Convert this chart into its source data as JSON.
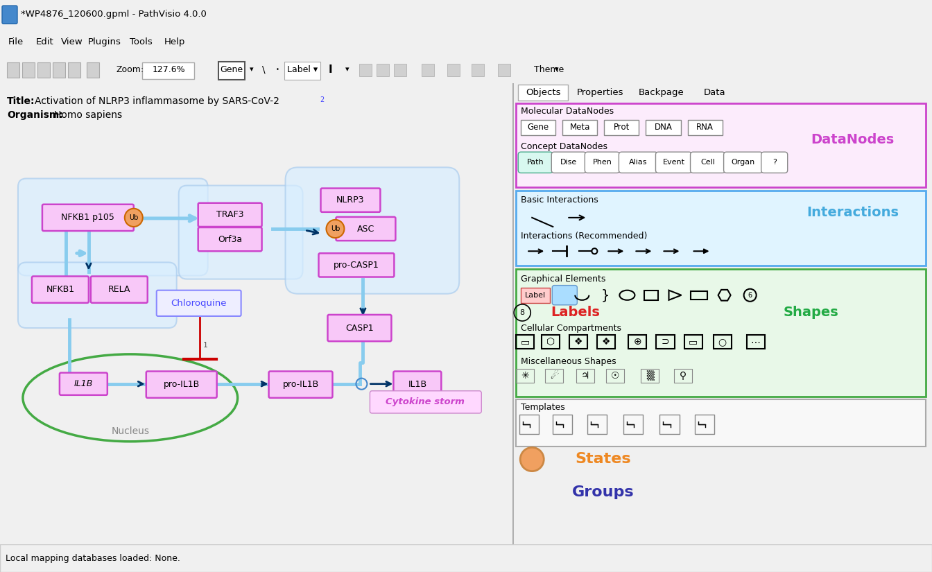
{
  "title_bar": "*WP4876_120600.gpml - PathVisio 4.0.0",
  "menu_items": [
    "File",
    "Edit",
    "View",
    "Plugins",
    "Tools",
    "Help"
  ],
  "zoom_level": "127.6%",
  "pathway_title": "Activation of NLRP3 inflammasome by SARS-CoV-2",
  "pathway_title_sub": "2",
  "organism": "Homo sapiens",
  "tab_labels": [
    "Objects",
    "Properties",
    "Backpage",
    "Data"
  ],
  "datanodes_color": "#cc44cc",
  "interactions_color": "#44aadd",
  "labels_color": "#dd2222",
  "shapes_color": "#22aa44",
  "groups_color": "#3333aa",
  "states_color": "#ee8822",
  "node_fill": "#f8c8f8",
  "node_border": "#cc44cc",
  "light_blue_line": "#88ccee",
  "dark_arrow": "#003366",
  "red_line": "#cc0000",
  "state_fill": "#f0a060",
  "state_border": "#cc6600",
  "cytokine_color": "#cc44cc",
  "status_bar": "Local mapping databases loaded: None.",
  "mol_buttons": [
    "Gene",
    "Meta",
    "Prot",
    "DNA",
    "RNA"
  ],
  "con_buttons": [
    "Path",
    "Dise",
    "Phen",
    "Alias",
    "Event",
    "Cell",
    "Organ",
    "?"
  ]
}
